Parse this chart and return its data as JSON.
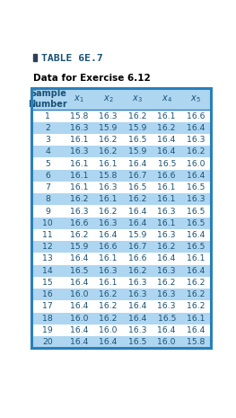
{
  "title_square_color": "#2E4057",
  "title_text": "TABLE 6E.7",
  "subtitle_text": "Data for Exercise 6.12",
  "header_bg": "#AED6F1",
  "row_bg_even": "#AED6F1",
  "row_bg_odd": "#FFFFFF",
  "data": [
    [
      1,
      15.8,
      16.3,
      16.2,
      16.1,
      16.6
    ],
    [
      2,
      16.3,
      15.9,
      15.9,
      16.2,
      16.4
    ],
    [
      3,
      16.1,
      16.2,
      16.5,
      16.4,
      16.3
    ],
    [
      4,
      16.3,
      16.2,
      15.9,
      16.4,
      16.2
    ],
    [
      5,
      16.1,
      16.1,
      16.4,
      16.5,
      16.0
    ],
    [
      6,
      16.1,
      15.8,
      16.7,
      16.6,
      16.4
    ],
    [
      7,
      16.1,
      16.3,
      16.5,
      16.1,
      16.5
    ],
    [
      8,
      16.2,
      16.1,
      16.2,
      16.1,
      16.3
    ],
    [
      9,
      16.3,
      16.2,
      16.4,
      16.3,
      16.5
    ],
    [
      10,
      16.6,
      16.3,
      16.4,
      16.1,
      16.5
    ],
    [
      11,
      16.2,
      16.4,
      15.9,
      16.3,
      16.4
    ],
    [
      12,
      15.9,
      16.6,
      16.7,
      16.2,
      16.5
    ],
    [
      13,
      16.4,
      16.1,
      16.6,
      16.4,
      16.1
    ],
    [
      14,
      16.5,
      16.3,
      16.2,
      16.3,
      16.4
    ],
    [
      15,
      16.4,
      16.1,
      16.3,
      16.2,
      16.2
    ],
    [
      16,
      16.0,
      16.2,
      16.3,
      16.3,
      16.2
    ],
    [
      17,
      16.4,
      16.2,
      16.4,
      16.3,
      16.2
    ],
    [
      18,
      16.0,
      16.2,
      16.4,
      16.5,
      16.1
    ],
    [
      19,
      16.4,
      16.0,
      16.3,
      16.4,
      16.4
    ],
    [
      20,
      16.4,
      16.4,
      16.5,
      16.0,
      15.8
    ]
  ],
  "text_color": "#1A5276",
  "title_color": "#1A5276",
  "border_color": "#2980B9",
  "figsize": [
    2.63,
    4.65
  ],
  "dpi": 100
}
